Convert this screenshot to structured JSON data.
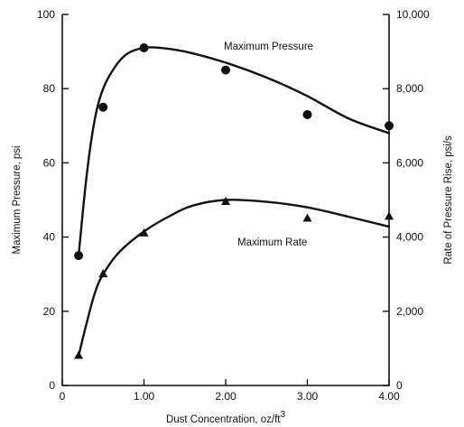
{
  "chart_data": {
    "type": "line",
    "xlabel": "Dust Concentration, oz/ft",
    "xlabel_superscript": "3",
    "ylabel_left": "Maximum Pressure, psi",
    "ylabel_right": "Rate of Pressure Rise, psi/s",
    "xlim": [
      0,
      4.0
    ],
    "ylim_left": [
      0,
      100
    ],
    "ylim_right": [
      0,
      10000
    ],
    "x_ticks": [
      0,
      1.0,
      2.0,
      3.0,
      4.0
    ],
    "x_tick_labels": [
      "0",
      "1.00",
      "2.00",
      "3.00",
      "4.00"
    ],
    "y_left_ticks": [
      0,
      20,
      40,
      60,
      80,
      100
    ],
    "y_left_tick_labels": [
      "0",
      "20",
      "40",
      "60",
      "80",
      "100"
    ],
    "y_right_ticks": [
      0,
      2000,
      4000,
      6000,
      8000,
      10000
    ],
    "y_right_tick_labels": [
      "0",
      "2,000",
      "4,000",
      "6,000",
      "8,000",
      "10,000"
    ],
    "grid": false,
    "series": [
      {
        "name": "Maximum Pressure",
        "axis": "left",
        "marker": "circle",
        "x": [
          0.2,
          0.5,
          1.0,
          2.0,
          3.0,
          4.0
        ],
        "y": [
          35,
          75,
          91,
          85,
          73,
          70
        ],
        "curve_x": [
          0.2,
          0.3,
          0.4,
          0.5,
          0.65,
          0.8,
          1.0,
          1.2,
          1.5,
          2.0,
          2.5,
          3.0,
          3.5,
          4.0
        ],
        "curve_y": [
          35,
          57,
          72,
          80,
          86,
          89.5,
          91,
          91,
          90,
          87,
          83,
          78,
          72,
          68
        ]
      },
      {
        "name": "Maximum Rate",
        "axis": "right",
        "marker": "triangle",
        "x": [
          0.2,
          0.5,
          1.0,
          2.0,
          3.0,
          4.0
        ],
        "y": [
          800,
          3000,
          4100,
          4950,
          4500,
          4550
        ],
        "curve_x": [
          0.2,
          0.3,
          0.4,
          0.5,
          0.7,
          1.0,
          1.3,
          1.6,
          2.0,
          2.5,
          3.0,
          3.5,
          4.0
        ],
        "curve_y": [
          800,
          1700,
          2500,
          3000,
          3600,
          4150,
          4550,
          4850,
          5000,
          4950,
          4800,
          4550,
          4280
        ]
      }
    ],
    "annotations": [
      {
        "text": "Maximum Pressure",
        "series": "Maximum Pressure"
      },
      {
        "text": "Maximum Rate",
        "series": "Maximum Rate"
      }
    ]
  }
}
